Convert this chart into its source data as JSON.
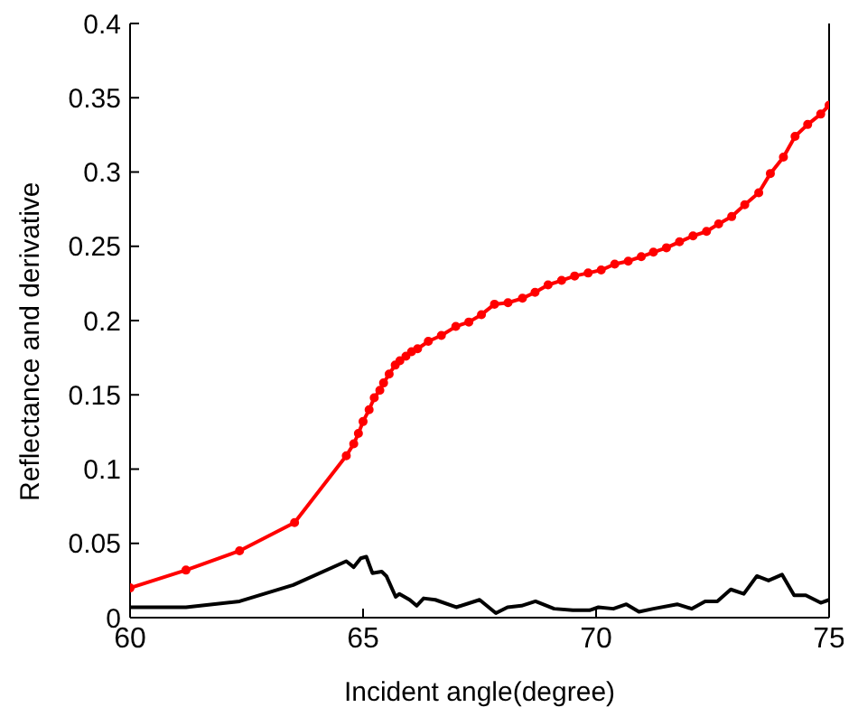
{
  "chart_data": {
    "type": "line",
    "xlabel": "Incident angle(degree)",
    "ylabel": "Reflectance and derivative",
    "xlim": [
      60,
      75
    ],
    "xticks": [
      60,
      65,
      70,
      75
    ],
    "ylim": [
      0,
      0.4
    ],
    "yticks": [
      0,
      0.05,
      0.1,
      0.15,
      0.2,
      0.25,
      0.3,
      0.35,
      0.4
    ],
    "line_style": "solid",
    "series": [
      {
        "color": "#ff0000",
        "marker": "circle",
        "x": [
          60,
          61.2,
          62.35,
          63.53,
          64.64,
          64.8,
          64.9,
          65.0,
          65.13,
          65.24,
          65.36,
          65.44,
          65.56,
          65.69,
          65.79,
          65.92,
          66.04,
          66.17,
          66.4,
          66.68,
          66.99,
          67.27,
          67.54,
          67.82,
          68.11,
          68.42,
          68.69,
          68.97,
          69.26,
          69.54,
          69.83,
          70.11,
          70.4,
          70.69,
          70.97,
          71.23,
          71.51,
          71.79,
          72.08,
          72.37,
          72.63,
          72.91,
          73.19,
          73.49,
          73.74,
          74.02,
          74.27,
          74.54,
          74.82,
          75
        ],
        "values": [
          0.02,
          0.032,
          0.045,
          0.064,
          0.109,
          0.117,
          0.124,
          0.132,
          0.14,
          0.148,
          0.153,
          0.158,
          0.164,
          0.17,
          0.173,
          0.176,
          0.179,
          0.181,
          0.186,
          0.19,
          0.196,
          0.199,
          0.204,
          0.211,
          0.212,
          0.215,
          0.219,
          0.224,
          0.227,
          0.23,
          0.232,
          0.234,
          0.238,
          0.24,
          0.243,
          0.246,
          0.249,
          0.253,
          0.257,
          0.26,
          0.265,
          0.27,
          0.278,
          0.286,
          0.299,
          0.31,
          0.324,
          0.332,
          0.339,
          0.345
        ]
      },
      {
        "color": "#000000",
        "marker": "none",
        "x": [
          60,
          61.2,
          62.35,
          63.5,
          64.64,
          64.8,
          64.95,
          65.07,
          65.2,
          65.4,
          65.5,
          65.7,
          65.78,
          66.0,
          66.15,
          66.3,
          66.55,
          67.0,
          67.5,
          67.85,
          68.1,
          68.4,
          68.7,
          69.1,
          69.5,
          69.86,
          70.05,
          70.37,
          70.65,
          70.92,
          71.23,
          71.74,
          72.05,
          72.34,
          72.6,
          72.89,
          73.17,
          73.45,
          73.7,
          73.99,
          74.25,
          74.5,
          74.82,
          75
        ],
        "values": [
          0.007,
          0.007,
          0.011,
          0.022,
          0.038,
          0.034,
          0.04,
          0.041,
          0.03,
          0.031,
          0.028,
          0.014,
          0.016,
          0.012,
          0.008,
          0.013,
          0.012,
          0.007,
          0.012,
          0.003,
          0.007,
          0.008,
          0.011,
          0.006,
          0.005,
          0.005,
          0.007,
          0.006,
          0.009,
          0.004,
          0.006,
          0.009,
          0.006,
          0.011,
          0.011,
          0.019,
          0.016,
          0.028,
          0.025,
          0.029,
          0.015,
          0.015,
          0.01,
          0.012
        ]
      }
    ]
  }
}
